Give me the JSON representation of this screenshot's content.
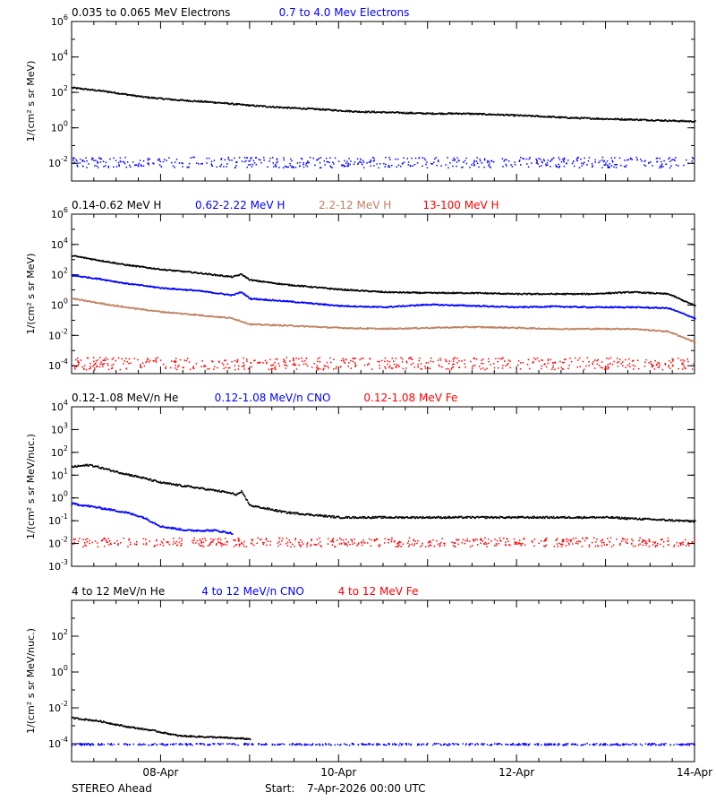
{
  "footer": {
    "spacecraft": "STEREO Ahead",
    "start_label": "Start:",
    "start_value": "7-Apr-2026 00:00 UTC"
  },
  "chart_data": [
    {
      "type": "scatter",
      "ylabel": "1/(cm² s sr MeV)",
      "yscale": "log",
      "ylim": [
        0.001,
        1000000
      ],
      "yticks": [
        {
          "v": 1000000,
          "b": "10",
          "e": "6"
        },
        {
          "v": 10000,
          "b": "10",
          "e": "4"
        },
        {
          "v": 100,
          "b": "10",
          "e": "2"
        },
        {
          "v": 1,
          "b": "10",
          "e": "0"
        },
        {
          "v": 0.01,
          "b": "10",
          "e": "-2"
        }
      ],
      "legend": [
        {
          "name": "0.035 to 0.065 MeV Electrons",
          "color": "#000000"
        },
        {
          "name": "0.7 to 4.0 Mev Electrons",
          "color": "#0000ff"
        }
      ],
      "series": [
        {
          "name": "0.035 to 0.065 MeV Electrons",
          "color": "#000000",
          "style": "dense",
          "x": [
            0,
            0.4,
            0.8,
            1.2,
            1.6,
            2.0,
            2.4,
            2.8,
            3.2,
            3.6,
            4.0,
            4.4,
            4.8,
            5.2,
            5.6,
            6.0,
            6.5,
            7.0
          ],
          "y": [
            200,
            120,
            60,
            40,
            30,
            20,
            15,
            12,
            9,
            8,
            7,
            7,
            6,
            5,
            4,
            3.5,
            3,
            2.5
          ]
        },
        {
          "name": "0.7 to 4.0 Mev Electrons",
          "color": "#0000ff",
          "style": "scatter",
          "x_start": 0,
          "x_end": 7.0,
          "y_center": 0.012,
          "y_spread": 0.3
        }
      ]
    },
    {
      "type": "scatter",
      "ylabel": "1/(cm² s sr MeV)",
      "yscale": "log",
      "ylim": [
        3e-05,
        1000000
      ],
      "yticks": [
        {
          "v": 1000000,
          "b": "10",
          "e": "6"
        },
        {
          "v": 10000,
          "b": "10",
          "e": "4"
        },
        {
          "v": 100,
          "b": "10",
          "e": "2"
        },
        {
          "v": 1,
          "b": "10",
          "e": "0"
        },
        {
          "v": 0.01,
          "b": "10",
          "e": "-2"
        },
        {
          "v": 0.0001,
          "b": "10",
          "e": "-4"
        }
      ],
      "legend": [
        {
          "name": "0.14-0.62 MeV H",
          "color": "#000000"
        },
        {
          "name": "0.62-2.22 MeV H",
          "color": "#0000ff"
        },
        {
          "name": "2.2-12 MeV H",
          "color": "#c08060"
        },
        {
          "name": "13-100 MeV H",
          "color": "#ff0000"
        }
      ],
      "series": [
        {
          "name": "0.14-0.62 MeV H",
          "color": "#000000",
          "style": "dense",
          "x": [
            0,
            0.3,
            0.6,
            1.0,
            1.4,
            1.8,
            1.9,
            2.0,
            2.4,
            3.0,
            3.5,
            4.0,
            4.5,
            5.0,
            5.4,
            5.8,
            6.3,
            6.7,
            7.0
          ],
          "y": [
            2000,
            1000,
            500,
            250,
            150,
            80,
            120,
            50,
            25,
            12,
            8,
            7,
            7,
            6,
            6,
            6,
            8,
            6,
            1
          ]
        },
        {
          "name": "0.62-2.22 MeV H",
          "color": "#0000ff",
          "style": "dense",
          "x": [
            0,
            0.3,
            0.6,
            1.0,
            1.4,
            1.8,
            1.9,
            2.0,
            2.4,
            3.0,
            3.5,
            4.0,
            4.5,
            5.0,
            5.4,
            5.8,
            6.3,
            6.7,
            7.0
          ],
          "y": [
            100,
            60,
            30,
            15,
            10,
            5,
            8,
            3,
            2,
            1,
            0.8,
            1.2,
            1.0,
            0.8,
            0.9,
            0.8,
            0.8,
            0.7,
            0.15
          ]
        },
        {
          "name": "2.2-12 MeV H",
          "color": "#c08060",
          "style": "dense",
          "x": [
            0,
            0.3,
            0.6,
            1.0,
            1.4,
            1.8,
            2.0,
            2.4,
            3.0,
            3.5,
            4.0,
            4.5,
            5.0,
            5.4,
            5.8,
            6.3,
            6.7,
            7.0
          ],
          "y": [
            3,
            1.5,
            0.8,
            0.4,
            0.25,
            0.15,
            0.06,
            0.05,
            0.035,
            0.03,
            0.035,
            0.04,
            0.035,
            0.03,
            0.03,
            0.03,
            0.02,
            0.004
          ]
        },
        {
          "name": "13-100 MeV H",
          "color": "#ff0000",
          "style": "scatter",
          "x_start": 0,
          "x_end": 7.0,
          "y_center": 0.00015,
          "y_spread": 0.4
        }
      ]
    },
    {
      "type": "scatter",
      "ylabel": "1/(cm² s sr MeV/nuc.)",
      "yscale": "log",
      "ylim": [
        0.001,
        10000
      ],
      "yticks": [
        {
          "v": 10000,
          "b": "10",
          "e": "4"
        },
        {
          "v": 1000,
          "b": "10",
          "e": "3"
        },
        {
          "v": 100,
          "b": "10",
          "e": "2"
        },
        {
          "v": 10,
          "b": "10",
          "e": "1"
        },
        {
          "v": 1,
          "b": "10",
          "e": "0"
        },
        {
          "v": 0.1,
          "b": "10",
          "e": "-1"
        },
        {
          "v": 0.01,
          "b": "10",
          "e": "-2"
        },
        {
          "v": 0.001,
          "b": "10",
          "e": "-3"
        }
      ],
      "legend": [
        {
          "name": "0.12-1.08 MeV/n He",
          "color": "#000000"
        },
        {
          "name": "0.12-1.08 MeV/n CNO",
          "color": "#0000ff"
        },
        {
          "name": "0.12-1.08 MeV Fe",
          "color": "#ff0000"
        }
      ],
      "series": [
        {
          "name": "0.12-1.08 MeV/n He",
          "color": "#000000",
          "style": "dense",
          "x": [
            0,
            0.2,
            0.5,
            0.8,
            1.0,
            1.4,
            1.7,
            1.85,
            1.9,
            2.0,
            2.4,
            3.0,
            4.0,
            5.0,
            6.0,
            7.0
          ],
          "y": [
            25,
            30,
            15,
            8,
            5,
            3,
            2,
            1.5,
            2,
            0.5,
            0.25,
            0.15,
            0.15,
            0.15,
            0.15,
            0.1
          ]
        },
        {
          "name": "0.12-1.08 MeV/n CNO",
          "color": "#0000ff",
          "style": "dense",
          "x": [
            0,
            0.3,
            0.6,
            0.8,
            1.0,
            1.3,
            1.6,
            1.8
          ],
          "y": [
            0.6,
            0.4,
            0.25,
            0.15,
            0.06,
            0.04,
            0.04,
            0.03
          ]
        },
        {
          "name": "0.12-1.08 MeV Fe",
          "color": "#ff0000",
          "style": "scatter",
          "x_start": 0,
          "x_end": 7.0,
          "y_center": 0.012,
          "y_spread": 0.2
        }
      ]
    },
    {
      "type": "scatter",
      "ylabel": "1/(cm² s sr MeV/nuc.)",
      "yscale": "log",
      "ylim": [
        1e-05,
        10000
      ],
      "yticks": [
        {
          "v": 100,
          "b": "10",
          "e": "2"
        },
        {
          "v": 1,
          "b": "10",
          "e": "0"
        },
        {
          "v": 0.01,
          "b": "10",
          "e": "-2"
        },
        {
          "v": 0.0001,
          "b": "10",
          "e": "-4"
        }
      ],
      "legend": [
        {
          "name": "4 to 12 MeV/n He",
          "color": "#000000"
        },
        {
          "name": "4 to 12 MeV/n CNO",
          "color": "#0000ff"
        },
        {
          "name": "4 to 12 MeV Fe",
          "color": "#ff0000"
        }
      ],
      "series": [
        {
          "name": "4 to 12 MeV/n He",
          "color": "#000000",
          "style": "dense",
          "x": [
            0,
            0.3,
            0.6,
            0.9,
            1.2,
            1.6,
            2.0
          ],
          "y": [
            0.003,
            0.002,
            0.001,
            0.0006,
            0.0003,
            0.00025,
            0.0002
          ]
        },
        {
          "name": "4 to 12 MeV/n CNO",
          "color": "#0000ff",
          "style": "scatter",
          "x_start": 0,
          "x_end": 7.0,
          "y_center": 0.0001,
          "y_spread": 0.05
        }
      ]
    }
  ],
  "x_axis": {
    "xlim": [
      0,
      7
    ],
    "ticks": [
      {
        "v": 1,
        "label": "08-Apr"
      },
      {
        "v": 3,
        "label": "10-Apr"
      },
      {
        "v": 5,
        "label": "12-Apr"
      },
      {
        "v": 7,
        "label": "14-Apr"
      }
    ]
  }
}
